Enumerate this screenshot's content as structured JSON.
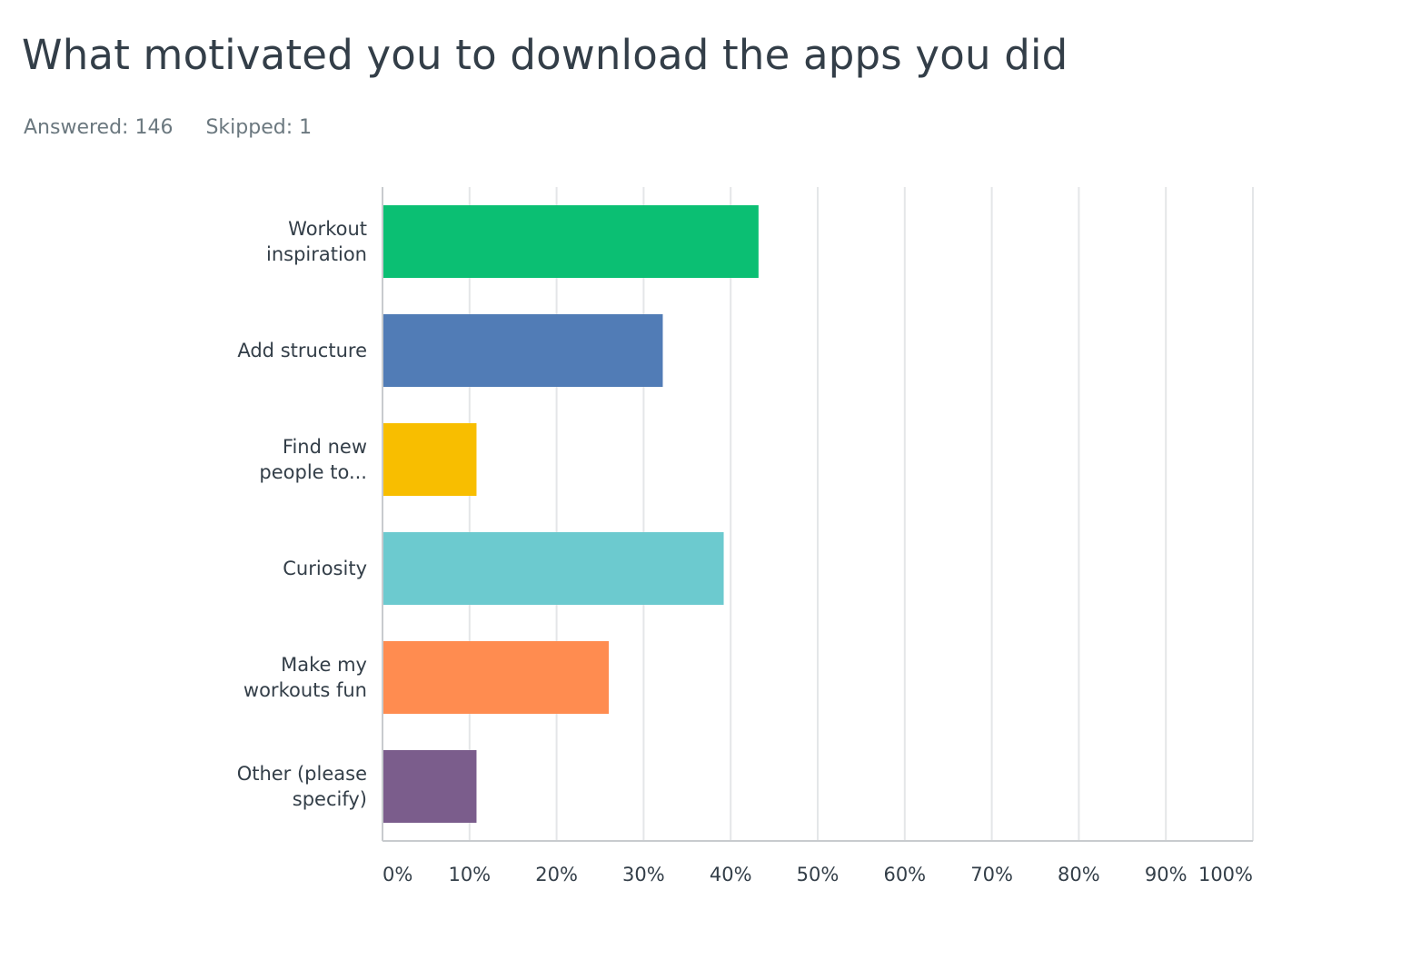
{
  "header": {
    "title": "What motivated you to download the apps you did",
    "answered": "Answered: 146",
    "skipped": "Skipped: 1"
  },
  "chart_data": {
    "type": "bar",
    "orientation": "horizontal",
    "categories": [
      [
        "Workout",
        "inspiration"
      ],
      [
        "Add structure"
      ],
      [
        "Find new",
        "people to..."
      ],
      [
        "Curiosity"
      ],
      [
        "Make my",
        "workouts fun"
      ],
      [
        "Other (please",
        "specify)"
      ]
    ],
    "values": [
      43.2,
      32.2,
      10.8,
      39.2,
      26.0,
      10.8
    ],
    "colors": [
      "#0bbf73",
      "#517cb6",
      "#f8be00",
      "#6ccacf",
      "#ff8c50",
      "#7b5d8c"
    ],
    "xlim": [
      0,
      100
    ],
    "xticks": [
      "0%",
      "10%",
      "20%",
      "30%",
      "40%",
      "50%",
      "60%",
      "70%",
      "80%",
      "90%",
      "100%"
    ],
    "grid": true,
    "gridColor": "#e4e6e8",
    "axisColor": "#c8cbce"
  }
}
